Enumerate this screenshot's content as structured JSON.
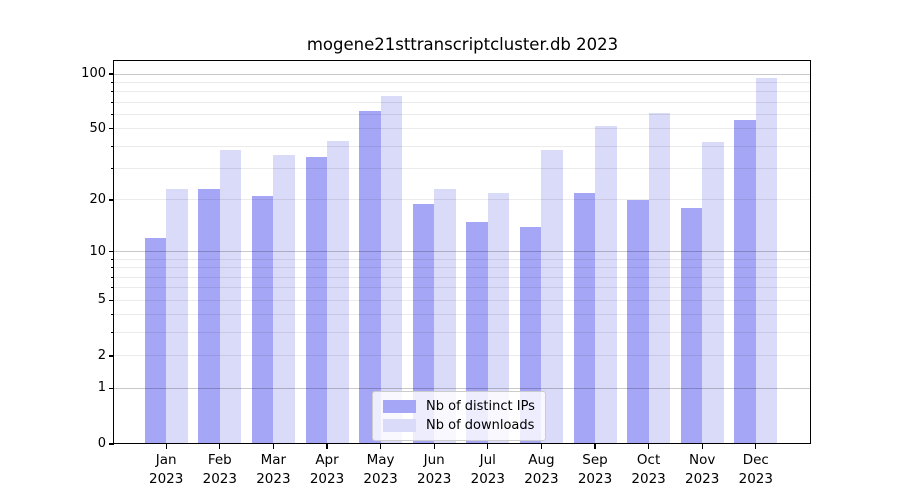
{
  "chart_data": {
    "type": "bar",
    "title": "mogene21sttranscriptcluster.db 2023",
    "categories": [
      "Jan",
      "Feb",
      "Mar",
      "Apr",
      "May",
      "Jun",
      "Jul",
      "Aug",
      "Sep",
      "Oct",
      "Nov",
      "Dec"
    ],
    "x_tick_year": "2023",
    "series": [
      {
        "name": "Nb of distinct IPs",
        "color": "#a6a6f7",
        "values": [
          12,
          23,
          21,
          35,
          63,
          19,
          15,
          14,
          22,
          20,
          18,
          56
        ]
      },
      {
        "name": "Nb of downloads",
        "color": "#dadaf9",
        "values": [
          23,
          38,
          36,
          43,
          76,
          23,
          22,
          38,
          52,
          61,
          42,
          95
        ]
      }
    ],
    "yscale": "log1p",
    "ylim": [
      0,
      118
    ],
    "ytick_values": [
      0,
      1,
      2,
      5,
      10,
      20,
      50,
      100
    ],
    "ytick_labels": [
      "0",
      "1",
      "2",
      "5",
      "10",
      "20",
      "50",
      "100"
    ],
    "major_gridlines": [
      1,
      10,
      100
    ],
    "minor_gridlines": [
      2,
      3,
      4,
      5,
      6,
      7,
      8,
      9,
      20,
      30,
      40,
      50,
      60,
      70,
      80,
      90
    ],
    "grid": true,
    "legend": {
      "position": "lower center",
      "entries": [
        "Nb of distinct IPs",
        "Nb of downloads"
      ]
    }
  }
}
